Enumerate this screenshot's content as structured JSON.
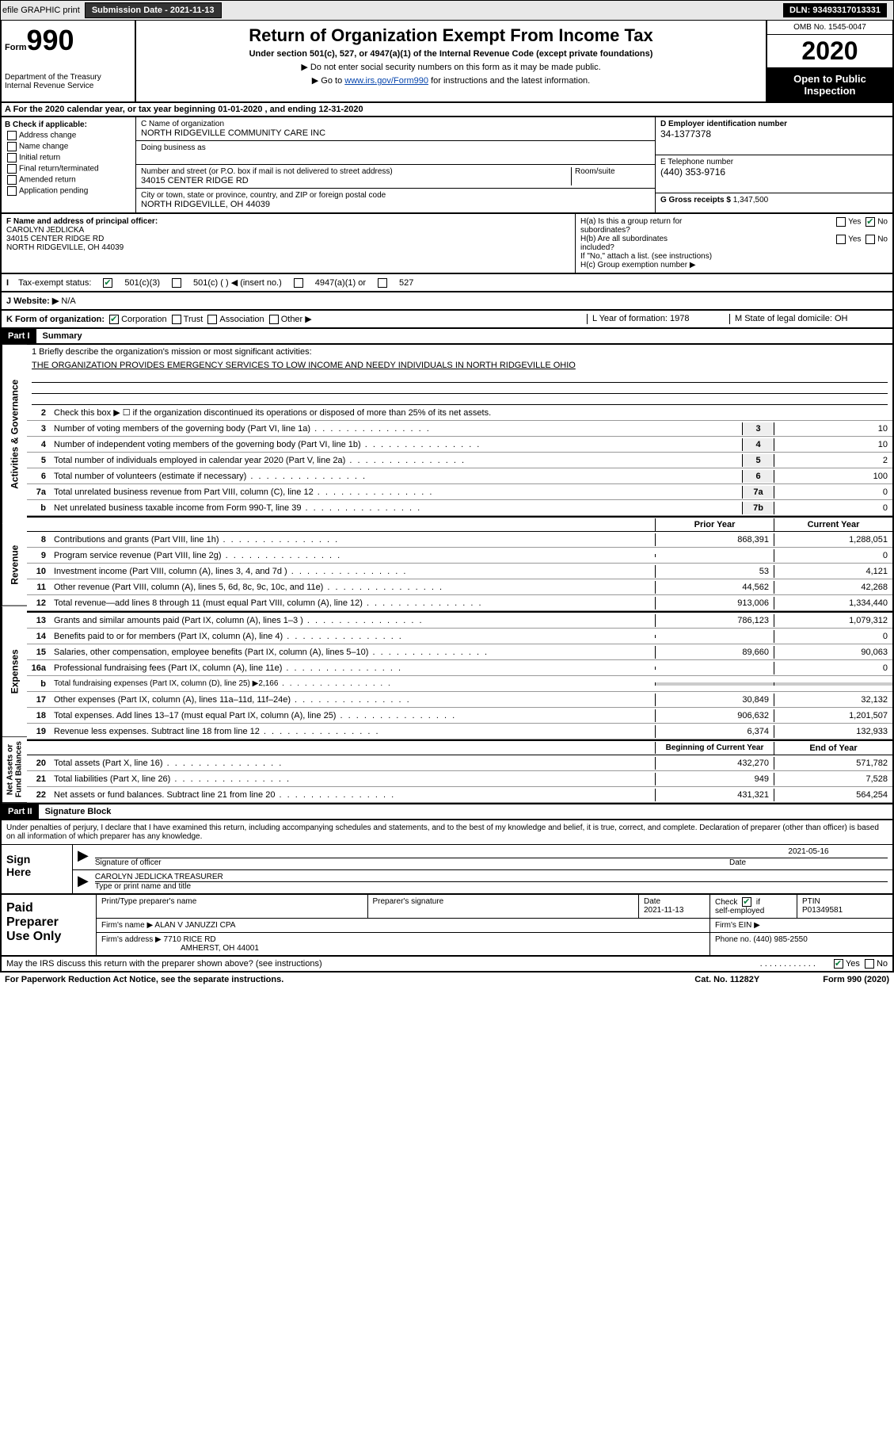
{
  "header": {
    "efile": "efile GRAPHIC print",
    "submission_label": "Submission Date - 2021-11-13",
    "dln": "DLN: 93493317013331"
  },
  "form_top": {
    "form_word": "Form",
    "form_num": "990",
    "dept": "Department of the Treasury\nInternal Revenue Service",
    "title": "Return of Organization Exempt From Income Tax",
    "sub": "Under section 501(c), 527, or 4947(a)(1) of the Internal Revenue Code (except private foundations)",
    "note1": "▶ Do not enter social security numbers on this form as it may be made public.",
    "note2_pre": "▶ Go to ",
    "note2_link": "www.irs.gov/Form990",
    "note2_post": " for instructions and the latest information.",
    "omb": "OMB No. 1545-0047",
    "year": "2020",
    "inspection": "Open to Public\nInspection"
  },
  "row_a": "A For the 2020 calendar year, or tax year beginning 01-01-2020   , and ending 12-31-2020",
  "section_b": {
    "title": "B Check if applicable:",
    "opts": [
      "Address change",
      "Name change",
      "Initial return",
      "Final return/terminated",
      "Amended return",
      "Application pending"
    ]
  },
  "section_c": {
    "name_label": "C Name of organization",
    "name": "NORTH RIDGEVILLE COMMUNITY CARE INC",
    "dba_label": "Doing business as",
    "dba": "",
    "street_label": "Number and street (or P.O. box if mail is not delivered to street address)",
    "room_label": "Room/suite",
    "street": "34015 CENTER RIDGE RD",
    "city_label": "City or town, state or province, country, and ZIP or foreign postal code",
    "city": "NORTH RIDGEVILLE, OH  44039"
  },
  "section_d": {
    "ein_label": "D Employer identification number",
    "ein": "34-1377378",
    "phone_label": "E Telephone number",
    "phone": "(440) 353-9716",
    "gross_label": "G Gross receipts $",
    "gross": "1,347,500"
  },
  "section_f": {
    "label": "F Name and address of principal officer:",
    "name": "CAROLYN JEDLICKA",
    "addr1": "34015 CENTER RIDGE RD",
    "addr2": "NORTH RIDGEVILLE, OH  44039"
  },
  "section_h": {
    "a": "H(a)  Is this a group return for\n        subordinates?",
    "b": "H(b)  Are all subordinates\n        included?",
    "note": "If \"No,\" attach a list. (see instructions)",
    "c": "H(c)  Group exemption number ▶",
    "yes": "Yes",
    "no": "No"
  },
  "row_i": {
    "label": "Tax-exempt status:",
    "o1": "501(c)(3)",
    "o2": "501(c) (  ) ◀ (insert no.)",
    "o3": "4947(a)(1) or",
    "o4": "527"
  },
  "row_j": {
    "label": "J   Website: ▶",
    "val": "N/A"
  },
  "row_k": {
    "label": "K Form of organization:",
    "o1": "Corporation",
    "o2": "Trust",
    "o3": "Association",
    "o4": "Other ▶",
    "l": "L Year of formation: 1978",
    "m": "M State of legal domicile: OH"
  },
  "part1": {
    "hdr": "Part I",
    "title": "Summary"
  },
  "summary": {
    "tabs": [
      "Activities & Governance",
      "Revenue",
      "Expenses",
      "Net Assets or\nFund Balances"
    ],
    "q1": "1  Briefly describe the organization's mission or most significant activities:",
    "mission": "THE ORGANIZATION PROVIDES EMERGENCY SERVICES TO LOW INCOME AND NEEDY INDIVIDUALS IN NORTH RIDGEVILLE OHIO",
    "q2": "Check this box ▶ ☐  if the organization discontinued its operations or disposed of more than 25% of its net assets.",
    "lines_gov": [
      {
        "n": "3",
        "t": "Number of voting members of the governing body (Part VI, line 1a)",
        "box": "3",
        "v": "10"
      },
      {
        "n": "4",
        "t": "Number of independent voting members of the governing body (Part VI, line 1b)",
        "box": "4",
        "v": "10"
      },
      {
        "n": "5",
        "t": "Total number of individuals employed in calendar year 2020 (Part V, line 2a)",
        "box": "5",
        "v": "2"
      },
      {
        "n": "6",
        "t": "Total number of volunteers (estimate if necessary)",
        "box": "6",
        "v": "100"
      },
      {
        "n": "7a",
        "t": "Total unrelated business revenue from Part VIII, column (C), line 12",
        "box": "7a",
        "v": "0"
      },
      {
        "n": "b",
        "t": "Net unrelated business taxable income from Form 990-T, line 39",
        "box": "7b",
        "v": "0"
      }
    ],
    "col_hdr": {
      "prior": "Prior Year",
      "current": "Current Year"
    },
    "lines_rev": [
      {
        "n": "8",
        "t": "Contributions and grants (Part VIII, line 1h)",
        "p": "868,391",
        "c": "1,288,051"
      },
      {
        "n": "9",
        "t": "Program service revenue (Part VIII, line 2g)",
        "p": "",
        "c": "0"
      },
      {
        "n": "10",
        "t": "Investment income (Part VIII, column (A), lines 3, 4, and 7d )",
        "p": "53",
        "c": "4,121"
      },
      {
        "n": "11",
        "t": "Other revenue (Part VIII, column (A), lines 5, 6d, 8c, 9c, 10c, and 11e)",
        "p": "44,562",
        "c": "42,268"
      },
      {
        "n": "12",
        "t": "Total revenue—add lines 8 through 11 (must equal Part VIII, column (A), line 12)",
        "p": "913,006",
        "c": "1,334,440"
      }
    ],
    "lines_exp": [
      {
        "n": "13",
        "t": "Grants and similar amounts paid (Part IX, column (A), lines 1–3 )",
        "p": "786,123",
        "c": "1,079,312"
      },
      {
        "n": "14",
        "t": "Benefits paid to or for members (Part IX, column (A), line 4)",
        "p": "",
        "c": "0"
      },
      {
        "n": "15",
        "t": "Salaries, other compensation, employee benefits (Part IX, column (A), lines 5–10)",
        "p": "89,660",
        "c": "90,063"
      },
      {
        "n": "16a",
        "t": "Professional fundraising fees (Part IX, column (A), line 11e)",
        "p": "",
        "c": "0"
      },
      {
        "n": "b",
        "t": "Total fundraising expenses (Part IX, column (D), line 25) ▶2,166",
        "p": "",
        "c": "",
        "gray": true
      },
      {
        "n": "17",
        "t": "Other expenses (Part IX, column (A), lines 11a–11d, 11f–24e)",
        "p": "30,849",
        "c": "32,132"
      },
      {
        "n": "18",
        "t": "Total expenses. Add lines 13–17 (must equal Part IX, column (A), line 25)",
        "p": "906,632",
        "c": "1,201,507"
      },
      {
        "n": "19",
        "t": "Revenue less expenses. Subtract line 18 from line 12",
        "p": "6,374",
        "c": "132,933"
      }
    ],
    "col_hdr2": {
      "begin": "Beginning of Current Year",
      "end": "End of Year"
    },
    "lines_net": [
      {
        "n": "20",
        "t": "Total assets (Part X, line 16)",
        "p": "432,270",
        "c": "571,782"
      },
      {
        "n": "21",
        "t": "Total liabilities (Part X, line 26)",
        "p": "949",
        "c": "7,528"
      },
      {
        "n": "22",
        "t": "Net assets or fund balances. Subtract line 21 from line 20",
        "p": "431,321",
        "c": "564,254"
      }
    ]
  },
  "part2": {
    "hdr": "Part II",
    "title": "Signature Block"
  },
  "sig": {
    "text": "Under penalties of perjury, I declare that I have examined this return, including accompanying schedules and statements, and to the best of my knowledge and belief, it is true, correct, and complete. Declaration of preparer (other than officer) is based on all information of which preparer has any knowledge.",
    "sign_here": "Sign\nHere",
    "sig_officer": "Signature of officer",
    "date_val": "2021-05-16",
    "date_lbl": "Date",
    "name": "CAROLYN JEDLICKA  TREASURER",
    "name_lbl": "Type or print name and title"
  },
  "paid": {
    "title": "Paid\nPreparer\nUse Only",
    "c1": "Print/Type preparer's name",
    "c2": "Preparer's signature",
    "c3": "Date",
    "c3v": "2021-11-13",
    "c4": "Check ☑ if\nself-employed",
    "c5": "PTIN",
    "c5v": "P01349581",
    "firm_lbl": "Firm's name    ▶",
    "firm": "ALAN V JANUZZI CPA",
    "ein_lbl": "Firm's EIN ▶",
    "addr_lbl": "Firm's address ▶",
    "addr1": "7710 RICE RD",
    "addr2": "AMHERST, OH  44001",
    "phone_lbl": "Phone no.",
    "phone": "(440) 985-2550"
  },
  "footer": {
    "q": "May the IRS discuss this return with the preparer shown above? (see instructions)",
    "yes": "Yes",
    "no": "No",
    "paperwork": "For Paperwork Reduction Act Notice, see the separate instructions.",
    "cat": "Cat. No. 11282Y",
    "form": "Form 990 (2020)"
  }
}
